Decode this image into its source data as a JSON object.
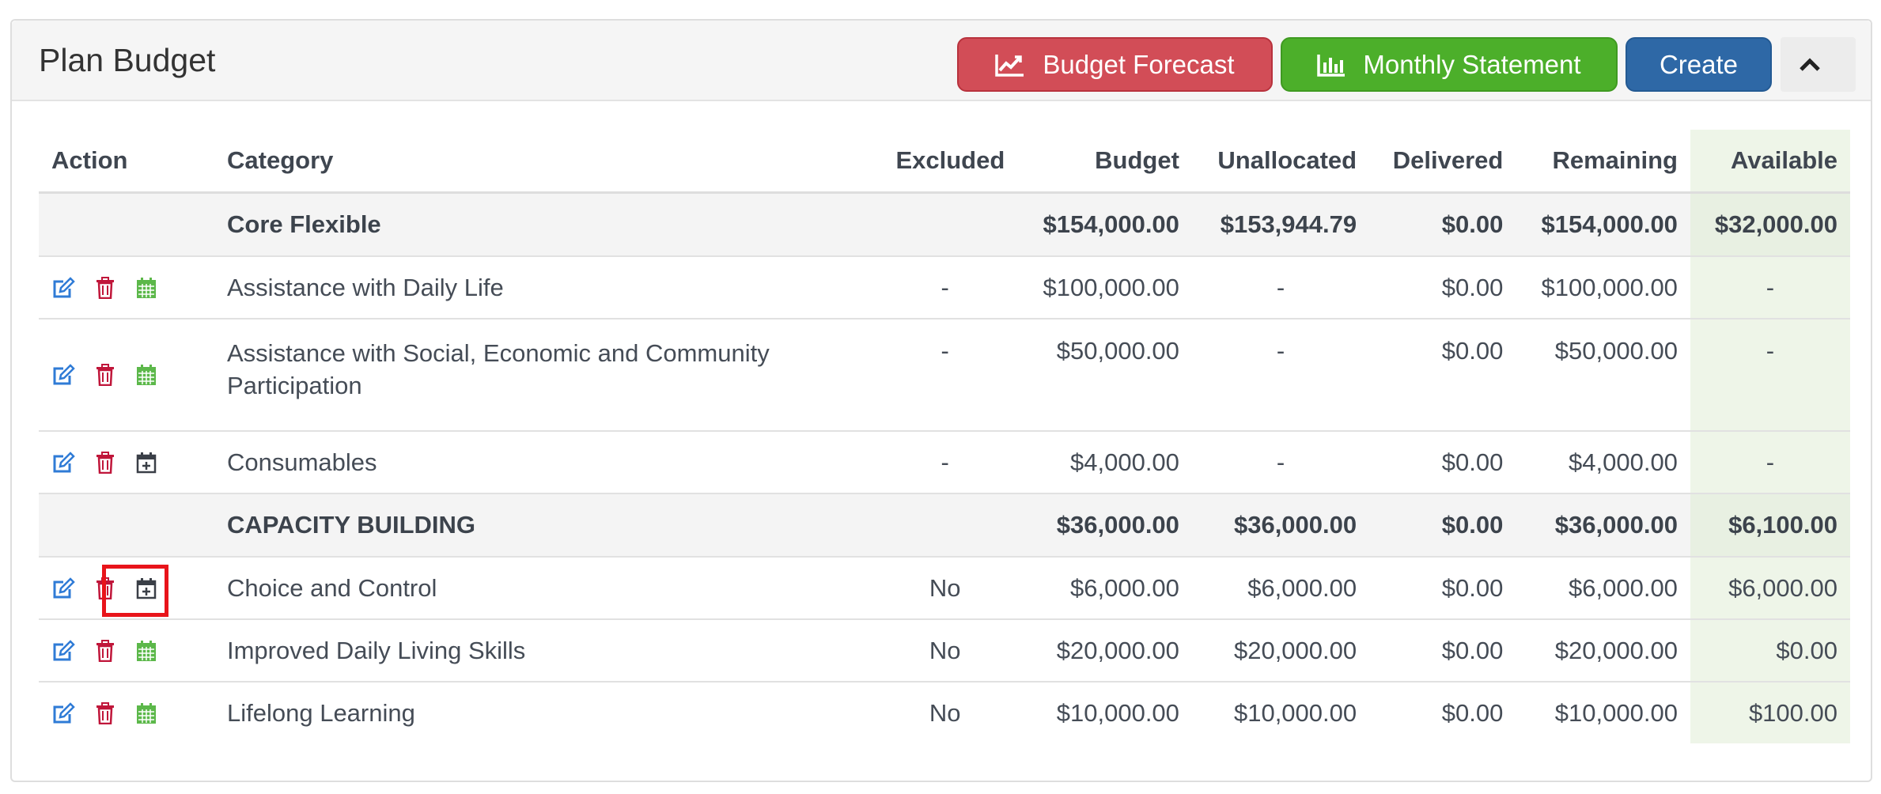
{
  "panel": {
    "title": "Plan Budget",
    "buttons": {
      "forecast": "Budget Forecast",
      "monthly": "Monthly Statement",
      "create": "Create",
      "collapse_icon": "chevron-up-icon"
    }
  },
  "colors": {
    "forecast": "#d24d57",
    "monthly": "#4caf2a",
    "create": "#2e68a6",
    "edit_icon": "#2f7bd6",
    "delete_icon": "#c0163a",
    "calendar_green": "#5cb84a",
    "calendar_dark": "#3a3f47",
    "highlight": "#e8141a",
    "available_bg": "#eef5e8"
  },
  "table": {
    "headers": {
      "action": "Action",
      "category": "Category",
      "excluded": "Excluded",
      "budget": "Budget",
      "unallocated": "Unallocated",
      "delivered": "Delivered",
      "remaining": "Remaining",
      "available": "Available"
    },
    "rows": [
      {
        "type": "group",
        "category": "Core Flexible",
        "excluded": "",
        "budget": "$154,000.00",
        "unallocated": "$153,944.79",
        "delivered": "$0.00",
        "remaining": "$154,000.00",
        "available": "$32,000.00"
      },
      {
        "type": "item",
        "category": "Assistance with Daily Life",
        "excluded": "-",
        "budget": "$100,000.00",
        "unallocated": "-",
        "delivered": "$0.00",
        "remaining": "$100,000.00",
        "available": "-",
        "calendar_icon": "calendar-icon"
      },
      {
        "type": "item",
        "category": "Assistance with Social, Economic and Community Participation",
        "excluded": "-",
        "budget": "$50,000.00",
        "unallocated": "-",
        "delivered": "$0.00",
        "remaining": "$50,000.00",
        "available": "-",
        "calendar_icon": "calendar-icon"
      },
      {
        "type": "item",
        "category": "Consumables",
        "excluded": "-",
        "budget": "$4,000.00",
        "unallocated": "-",
        "delivered": "$0.00",
        "remaining": "$4,000.00",
        "available": "-",
        "calendar_icon": "calendar-plus-icon"
      },
      {
        "type": "group",
        "category": "CAPACITY BUILDING",
        "excluded": "",
        "budget": "$36,000.00",
        "unallocated": "$36,000.00",
        "delivered": "$0.00",
        "remaining": "$36,000.00",
        "available": "$6,100.00"
      },
      {
        "type": "item",
        "category": "Choice and Control",
        "excluded": "No",
        "budget": "$6,000.00",
        "unallocated": "$6,000.00",
        "delivered": "$0.00",
        "remaining": "$6,000.00",
        "available": "$6,000.00",
        "calendar_icon": "calendar-plus-icon",
        "highlighted": true
      },
      {
        "type": "item",
        "category": "Improved Daily Living Skills",
        "excluded": "No",
        "budget": "$20,000.00",
        "unallocated": "$20,000.00",
        "delivered": "$0.00",
        "remaining": "$20,000.00",
        "available": "$0.00",
        "calendar_icon": "calendar-icon"
      },
      {
        "type": "item",
        "category": "Lifelong Learning",
        "excluded": "No",
        "budget": "$10,000.00",
        "unallocated": "$10,000.00",
        "delivered": "$0.00",
        "remaining": "$10,000.00",
        "available": "$100.00",
        "calendar_icon": "calendar-icon"
      }
    ]
  }
}
